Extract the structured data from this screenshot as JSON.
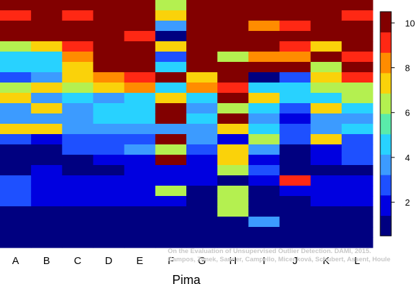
{
  "chart_data": {
    "type": "heatmap",
    "title": "",
    "xlabel": "Pima",
    "ylabel": "",
    "x_categories": [
      "A",
      "B",
      "C",
      "D",
      "E",
      "F",
      "G",
      "H",
      "I",
      "J",
      "K",
      "L"
    ],
    "row_count": 24,
    "row_order": "top-to-bottom",
    "value_range": [
      0.5,
      10.5
    ],
    "colorbar": {
      "ticks": [
        2,
        4,
        6,
        8,
        10
      ],
      "palette": [
        "#000080",
        "#0000e0",
        "#1e50ff",
        "#3c9bff",
        "#28d2ff",
        "#5aebaa",
        "#b4f050",
        "#fad20a",
        "#ff8c00",
        "#ff2814",
        "#820000"
      ]
    },
    "columns": [
      {
        "name": "A",
        "values": [
          10,
          9,
          10,
          10,
          6,
          5,
          5,
          3,
          6,
          7,
          4,
          4,
          7,
          3,
          1,
          1,
          1,
          3,
          3,
          3,
          1,
          1,
          1,
          0.5
        ]
      },
      {
        "name": "B",
        "values": [
          10,
          10,
          10,
          10,
          7,
          5,
          5,
          4,
          7,
          4,
          7,
          4,
          7,
          2,
          1,
          1,
          2,
          2,
          2,
          2,
          1,
          1,
          1,
          0.5
        ]
      },
      {
        "name": "C",
        "values": [
          10,
          9,
          10,
          10,
          9,
          8,
          7,
          7,
          6,
          5,
          4,
          4,
          4,
          3,
          3,
          1,
          1,
          2,
          2,
          2,
          1,
          1,
          1,
          0.5
        ]
      },
      {
        "name": "D",
        "values": [
          10,
          10,
          10,
          10,
          10,
          10,
          10,
          8,
          7,
          4,
          5,
          5,
          4,
          3,
          3,
          2,
          1,
          2,
          2,
          2,
          1,
          1,
          1,
          0.5
        ]
      },
      {
        "name": "E",
        "values": [
          10,
          10,
          10,
          9,
          10,
          10,
          10,
          9,
          8,
          5,
          5,
          5,
          4,
          3,
          4,
          2,
          2,
          2,
          2,
          2,
          1,
          1,
          1,
          0.5
        ]
      },
      {
        "name": "F",
        "values": [
          6,
          7,
          4,
          0.5,
          7,
          3,
          5,
          10,
          5,
          7,
          10,
          10,
          4,
          10,
          6,
          10,
          2,
          2,
          6,
          2,
          1,
          1,
          1,
          0.5
        ]
      },
      {
        "name": "G",
        "values": [
          10,
          10,
          10,
          10,
          10,
          10,
          10,
          7,
          8,
          5,
          4,
          5,
          4,
          4,
          3,
          2,
          2,
          2,
          1,
          1,
          1,
          1,
          1,
          0.5
        ]
      },
      {
        "name": "H",
        "values": [
          10,
          10,
          10,
          10,
          10,
          6,
          10,
          10,
          9,
          10,
          6,
          10,
          7,
          2,
          7,
          7,
          6,
          1,
          6,
          6,
          6,
          1,
          1,
          0.5
        ]
      },
      {
        "name": "I",
        "values": [
          10,
          10,
          8,
          10,
          10,
          8,
          10,
          1,
          5,
          7,
          5,
          4,
          5,
          6,
          4,
          2,
          3,
          2,
          1,
          1,
          1,
          4,
          1,
          0.5
        ]
      },
      {
        "name": "J",
        "values": [
          10,
          10,
          9,
          10,
          9,
          8,
          10,
          3,
          5,
          5,
          3,
          2,
          3,
          3,
          1,
          1,
          1,
          9,
          2,
          1,
          1,
          1,
          1,
          0.5
        ]
      },
      {
        "name": "K",
        "values": [
          10,
          10,
          10,
          10,
          7,
          10,
          6,
          7,
          6,
          5,
          7,
          4,
          4,
          7,
          2,
          2,
          1,
          2,
          2,
          2,
          1,
          1,
          1,
          0.5
        ]
      },
      {
        "name": "L",
        "values": [
          10,
          9,
          10,
          10,
          10,
          9,
          10,
          9,
          6,
          6,
          5,
          4,
          5,
          3,
          3,
          3,
          1,
          2,
          2,
          2,
          1,
          1,
          1,
          0.5
        ]
      }
    ]
  },
  "credit": {
    "line1": "On the Evaluation of Unsupervised Outlier Detection. DAMI, 2015.",
    "line2": "Campos, Zimek, Sander, Campello, Micenková, Schubert, Assent, Houle"
  }
}
